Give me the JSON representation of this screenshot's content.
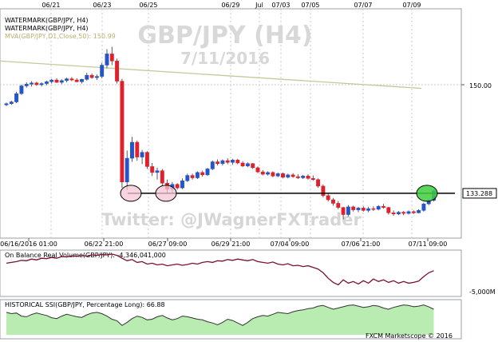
{
  "watermark": {
    "title": "GBP/JPY (H4)",
    "date": "7/11/2016",
    "twitter": "Twitter: @JWagnerFXTrader"
  },
  "legend": {
    "line1": "WATERMARK(GBP/JPY, H4)",
    "line2": "WATERMARK(GBP/JPY, H4)",
    "line3": "MVA(GBP/JPY,D1,Close,50): 150.99"
  },
  "footer": "FXCM Marketscope © 2016",
  "colors": {
    "up": "#2456c8",
    "down": "#e0202a",
    "mva": "#c8c89a",
    "obv": "#7a1030",
    "ssi_fill": "#b8ecb0",
    "ssi_line": "#333333",
    "level": "#000000",
    "circle_pink": "#f5c6d6",
    "circle_green": "#3ecf3e",
    "grid": "#c8c8d0"
  },
  "chart_data": [
    {
      "type": "candlestick",
      "symbol": "GBP/JPY",
      "timeframe": "H4",
      "top_axis_labels": [
        "06/21",
        "06/23",
        "06/25",
        "06/29",
        "Jul",
        "07/03",
        "07/05",
        "07/07",
        "07/09"
      ],
      "bottom_axis_labels": [
        "06/16/2016 01:00",
        "06/22 21:00",
        "06/27 09:00",
        "06/29 21:00",
        "07/04 09:00",
        "07/06 21:00",
        "07/11 09:00"
      ],
      "y_tick": 150.0,
      "y_tick_label": "150.00",
      "support_level": 133.288,
      "support_label": "133.288",
      "mva_label": "MVA(GBP/JPY,D1,Close,50): 150.99",
      "mva_start": 155.6,
      "mva_end": 150.99,
      "ylim": [
        126,
        164
      ],
      "candles": [
        [
          148.2,
          148.6,
          148.0,
          148.4
        ],
        [
          148.4,
          148.9,
          148.2,
          148.7
        ],
        [
          148.7,
          150.4,
          148.5,
          150.1
        ],
        [
          150.1,
          151.6,
          149.9,
          151.4
        ],
        [
          151.4,
          152.0,
          151.1,
          151.7
        ],
        [
          151.7,
          152.2,
          151.3,
          151.9
        ],
        [
          151.9,
          152.1,
          151.4,
          151.6
        ],
        [
          151.6,
          152.0,
          151.3,
          151.8
        ],
        [
          151.8,
          152.3,
          151.5,
          152.1
        ],
        [
          152.1,
          152.6,
          151.8,
          152.4
        ],
        [
          152.4,
          152.7,
          151.9,
          152.0
        ],
        [
          152.0,
          152.5,
          151.7,
          152.3
        ],
        [
          152.3,
          152.8,
          152.0,
          152.6
        ],
        [
          152.6,
          152.9,
          152.2,
          152.4
        ],
        [
          152.4,
          152.7,
          152.0,
          152.1
        ],
        [
          152.1,
          152.6,
          151.8,
          152.5
        ],
        [
          152.5,
          153.6,
          152.3,
          153.2
        ],
        [
          153.2,
          153.5,
          152.6,
          152.8
        ],
        [
          152.8,
          153.3,
          152.4,
          153.0
        ],
        [
          153.0,
          155.3,
          152.7,
          154.9
        ],
        [
          154.9,
          157.6,
          154.4,
          156.8
        ],
        [
          156.8,
          158.0,
          154.9,
          155.6
        ],
        [
          155.6,
          156.0,
          151.8,
          152.2
        ],
        [
          152.2,
          152.6,
          134.2,
          135.2
        ],
        [
          135.2,
          140.5,
          133.8,
          139.2
        ],
        [
          139.2,
          142.8,
          138.6,
          141.9
        ],
        [
          141.9,
          142.2,
          138.8,
          139.4
        ],
        [
          139.4,
          140.6,
          138.2,
          140.2
        ],
        [
          140.2,
          140.4,
          137.4,
          137.8
        ],
        [
          137.8,
          138.4,
          136.2,
          136.8
        ],
        [
          136.8,
          137.6,
          135.6,
          137.1
        ],
        [
          137.1,
          137.4,
          134.6,
          135.0
        ],
        [
          135.0,
          135.6,
          133.4,
          134.0
        ],
        [
          134.0,
          135.2,
          133.4,
          134.8
        ],
        [
          134.8,
          135.0,
          133.9,
          134.2
        ],
        [
          134.2,
          135.8,
          134.0,
          135.4
        ],
        [
          135.4,
          136.6,
          135.2,
          136.3
        ],
        [
          136.3,
          136.6,
          135.6,
          135.9
        ],
        [
          135.9,
          137.0,
          135.7,
          136.8
        ],
        [
          136.8,
          137.1,
          136.1,
          136.4
        ],
        [
          136.4,
          137.6,
          136.2,
          137.4
        ],
        [
          137.4,
          138.8,
          137.2,
          138.6
        ],
        [
          138.6,
          139.0,
          138.0,
          138.3
        ],
        [
          138.3,
          139.0,
          138.0,
          138.8
        ],
        [
          138.8,
          139.2,
          138.2,
          138.5
        ],
        [
          138.5,
          139.1,
          138.1,
          138.9
        ],
        [
          138.9,
          139.1,
          138.2,
          138.4
        ],
        [
          138.4,
          138.7,
          137.7,
          137.9
        ],
        [
          137.9,
          138.5,
          137.7,
          138.3
        ],
        [
          138.3,
          138.4,
          137.4,
          137.6
        ],
        [
          137.6,
          137.8,
          136.7,
          136.9
        ],
        [
          136.9,
          137.2,
          136.3,
          136.5
        ],
        [
          136.5,
          137.0,
          136.3,
          136.8
        ],
        [
          136.8,
          137.0,
          136.0,
          136.2
        ],
        [
          136.2,
          136.8,
          136.0,
          136.6
        ],
        [
          136.6,
          136.8,
          135.8,
          136.0
        ],
        [
          136.0,
          136.6,
          135.8,
          136.4
        ],
        [
          136.4,
          136.7,
          135.9,
          136.1
        ],
        [
          136.1,
          136.5,
          135.7,
          135.9
        ],
        [
          135.9,
          136.4,
          135.7,
          136.2
        ],
        [
          136.2,
          136.5,
          135.6,
          135.8
        ],
        [
          135.8,
          136.3,
          135.4,
          135.6
        ],
        [
          135.6,
          135.8,
          134.2,
          134.5
        ],
        [
          134.5,
          134.8,
          132.6,
          132.9
        ],
        [
          132.9,
          133.2,
          131.9,
          132.2
        ],
        [
          132.2,
          132.5,
          131.2,
          131.6
        ],
        [
          131.6,
          132.0,
          130.6,
          130.9
        ],
        [
          130.9,
          131.0,
          128.9,
          129.7
        ],
        [
          129.7,
          131.3,
          129.4,
          131.0
        ],
        [
          131.0,
          131.2,
          130.2,
          130.5
        ],
        [
          130.5,
          131.0,
          130.1,
          130.8
        ],
        [
          130.8,
          131.1,
          130.2,
          130.4
        ],
        [
          130.4,
          131.0,
          130.1,
          130.7
        ],
        [
          130.7,
          131.1,
          130.3,
          130.6
        ],
        [
          130.6,
          131.3,
          130.4,
          131.1
        ],
        [
          131.1,
          131.5,
          130.7,
          130.9
        ],
        [
          130.9,
          131.0,
          129.7,
          130.0
        ],
        [
          130.0,
          130.4,
          129.5,
          129.8
        ],
        [
          129.8,
          130.3,
          129.6,
          130.1
        ],
        [
          130.1,
          130.3,
          129.6,
          129.9
        ],
        [
          129.9,
          130.4,
          129.7,
          130.2
        ],
        [
          130.2,
          130.4,
          129.8,
          130.0
        ],
        [
          130.0,
          130.6,
          129.9,
          130.4
        ],
        [
          130.4,
          131.7,
          130.2,
          131.5
        ],
        [
          131.5,
          132.3,
          131.3,
          132.1
        ],
        [
          132.1,
          133.9,
          131.9,
          133.7
        ]
      ]
    },
    {
      "type": "line",
      "name": "On Balance Real Volume(GBP/JPY)",
      "label": "On Balance Real Volume(GBP/JPY): -4,346,041,000",
      "y_tick_label": "-5,000M",
      "values": [
        0.78,
        0.8,
        0.82,
        0.85,
        0.84,
        0.88,
        0.86,
        0.9,
        0.89,
        0.92,
        0.9,
        0.94,
        0.93,
        0.96,
        0.95,
        0.97,
        0.95,
        0.98,
        0.97,
        0.99,
        0.98,
        1.0,
        0.97,
        0.9,
        0.84,
        0.87,
        0.8,
        0.82,
        0.76,
        0.78,
        0.74,
        0.76,
        0.72,
        0.74,
        0.76,
        0.73,
        0.75,
        0.78,
        0.76,
        0.8,
        0.82,
        0.8,
        0.84,
        0.83,
        0.87,
        0.85,
        0.88,
        0.86,
        0.84,
        0.87,
        0.82,
        0.8,
        0.78,
        0.81,
        0.76,
        0.74,
        0.77,
        0.72,
        0.73,
        0.7,
        0.72,
        0.68,
        0.64,
        0.55,
        0.42,
        0.32,
        0.26,
        0.38,
        0.3,
        0.34,
        0.28,
        0.36,
        0.3,
        0.4,
        0.34,
        0.38,
        0.32,
        0.36,
        0.3,
        0.34,
        0.3,
        0.32,
        0.35,
        0.46,
        0.55,
        0.6
      ]
    },
    {
      "type": "area",
      "name": "HISTORICAL SSI(GBP/JPY, Percentage Long)",
      "label": "HISTORICAL SSI(GBP/JPY, Percentage Long): 66.88",
      "values": [
        0.72,
        0.68,
        0.7,
        0.6,
        0.58,
        0.65,
        0.7,
        0.66,
        0.62,
        0.55,
        0.52,
        0.6,
        0.66,
        0.62,
        0.58,
        0.56,
        0.64,
        0.7,
        0.72,
        0.68,
        0.6,
        0.5,
        0.45,
        0.3,
        0.4,
        0.52,
        0.6,
        0.56,
        0.48,
        0.5,
        0.58,
        0.62,
        0.54,
        0.48,
        0.52,
        0.6,
        0.58,
        0.54,
        0.5,
        0.48,
        0.42,
        0.38,
        0.32,
        0.4,
        0.5,
        0.46,
        0.38,
        0.3,
        0.4,
        0.52,
        0.58,
        0.62,
        0.6,
        0.66,
        0.72,
        0.7,
        0.68,
        0.74,
        0.78,
        0.8,
        0.84,
        0.86,
        0.92,
        0.94,
        0.88,
        0.82,
        0.86,
        0.9,
        0.94,
        0.96,
        0.92,
        0.88,
        0.9,
        0.94,
        0.92,
        0.86,
        0.82,
        0.88,
        0.92,
        0.96,
        0.94,
        0.9,
        0.92,
        0.96,
        0.9,
        0.82
      ]
    }
  ]
}
